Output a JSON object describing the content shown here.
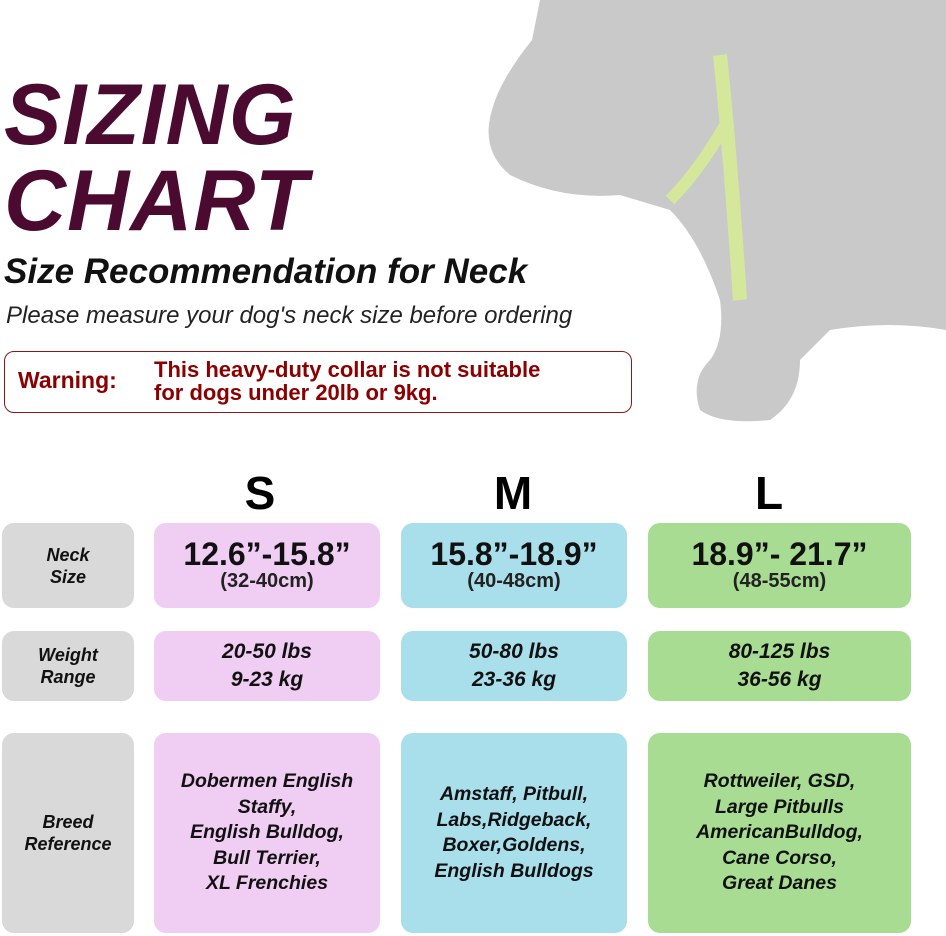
{
  "title_line1": "SIZING",
  "title_line2": "CHART",
  "subtitle": "Size Recommendation for Neck",
  "instruction": "Please measure your dog's neck size before ordering",
  "warning": {
    "label": "Warning:",
    "line1": "This heavy-duty collar is not suitable",
    "line2": "for dogs under 20lb or 9kg.",
    "color": "#8b0000"
  },
  "row_labels": {
    "neck": [
      "Neck",
      "Size"
    ],
    "weight": [
      "Weight",
      "Range"
    ],
    "breed": [
      "Breed",
      "Reference"
    ]
  },
  "sizes": [
    {
      "name": "S",
      "color": "#f0cdf2",
      "neck_in": "12.6”-15.8”",
      "neck_cm": "(32-40cm)",
      "weight_lbs": "20-50 lbs",
      "weight_kg": "9-23 kg",
      "breeds": [
        "Dobermen English",
        "Staffy,",
        "English Bulldog,",
        "Bull Terrier,",
        "XL Frenchies"
      ]
    },
    {
      "name": "M",
      "color": "#a9dfeb",
      "neck_in": "15.8”-18.9”",
      "neck_cm": "(40-48cm)",
      "weight_lbs": "50-80 lbs",
      "weight_kg": "23-36 kg",
      "breeds": [
        "Amstaff, Pitbull,",
        "Labs,Ridgeback,",
        "Boxer,Goldens,",
        "English Bulldogs"
      ]
    },
    {
      "name": "L",
      "color": "#a8dc93",
      "neck_in": "18.9”- 21.7”",
      "neck_cm": "(48-55cm)",
      "weight_lbs": "80-125 lbs",
      "weight_kg": "36-56 kg",
      "breeds": [
        "Rottweiler, GSD,",
        "Large Pitbulls",
        "AmericanBulldog,",
        "Cane Corso,",
        "Great Danes"
      ]
    }
  ],
  "icons": {
    "dog": "dog-silhouette-with-measuring-tape"
  }
}
